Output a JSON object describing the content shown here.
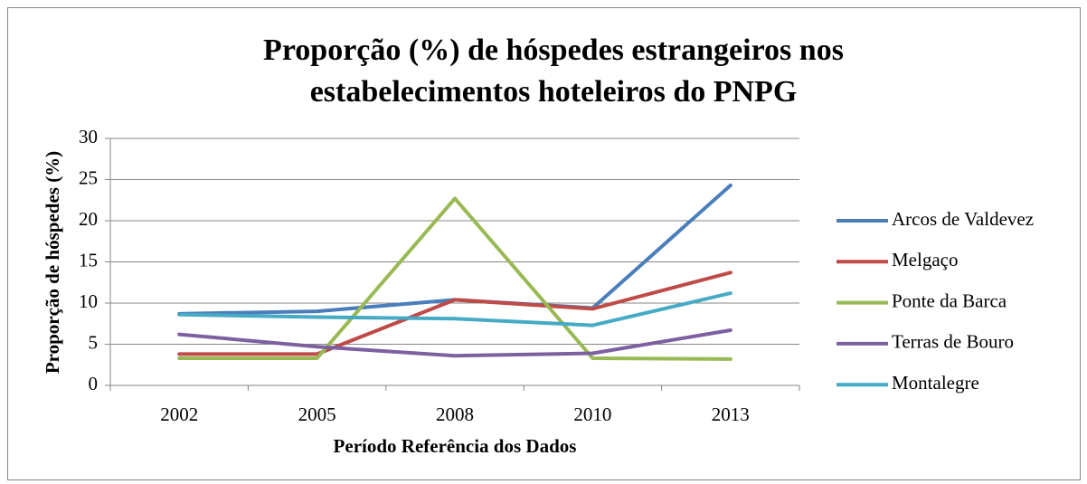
{
  "chart_data": {
    "type": "line",
    "title": [
      "Proporção (%) de hóspedes estrangeiros nos",
      "estabelecimentos hoteleiros do PNPG"
    ],
    "x_label": "Período Referência dos Dados",
    "y_label": "Proporção de hóspedes (%)",
    "categories": [
      "2002",
      "2005",
      "2008",
      "2010",
      "2013"
    ],
    "series": [
      {
        "name": "Arcos de Valdevez",
        "color": "#4a7ebb",
        "values": [
          8.7,
          9.0,
          10.4,
          9.4,
          24.3
        ]
      },
      {
        "name": "Melgaço",
        "color": "#be4b48",
        "values": [
          3.8,
          3.8,
          10.4,
          9.3,
          13.7
        ]
      },
      {
        "name": "Ponte da Barca",
        "color": "#98b954",
        "values": [
          3.3,
          3.3,
          22.7,
          3.3,
          3.2
        ]
      },
      {
        "name": "Terras de Bouro",
        "color": "#7d60a0",
        "values": [
          6.2,
          4.7,
          3.6,
          3.9,
          6.7
        ]
      },
      {
        "name": "Montalegre",
        "color": "#46aac5",
        "values": [
          8.6,
          8.3,
          8.1,
          7.3,
          11.2
        ]
      }
    ],
    "ylim": [
      0,
      30
    ],
    "yticks": [
      0,
      5,
      10,
      15,
      20,
      25,
      30
    ],
    "grid": true,
    "legend": "right"
  }
}
